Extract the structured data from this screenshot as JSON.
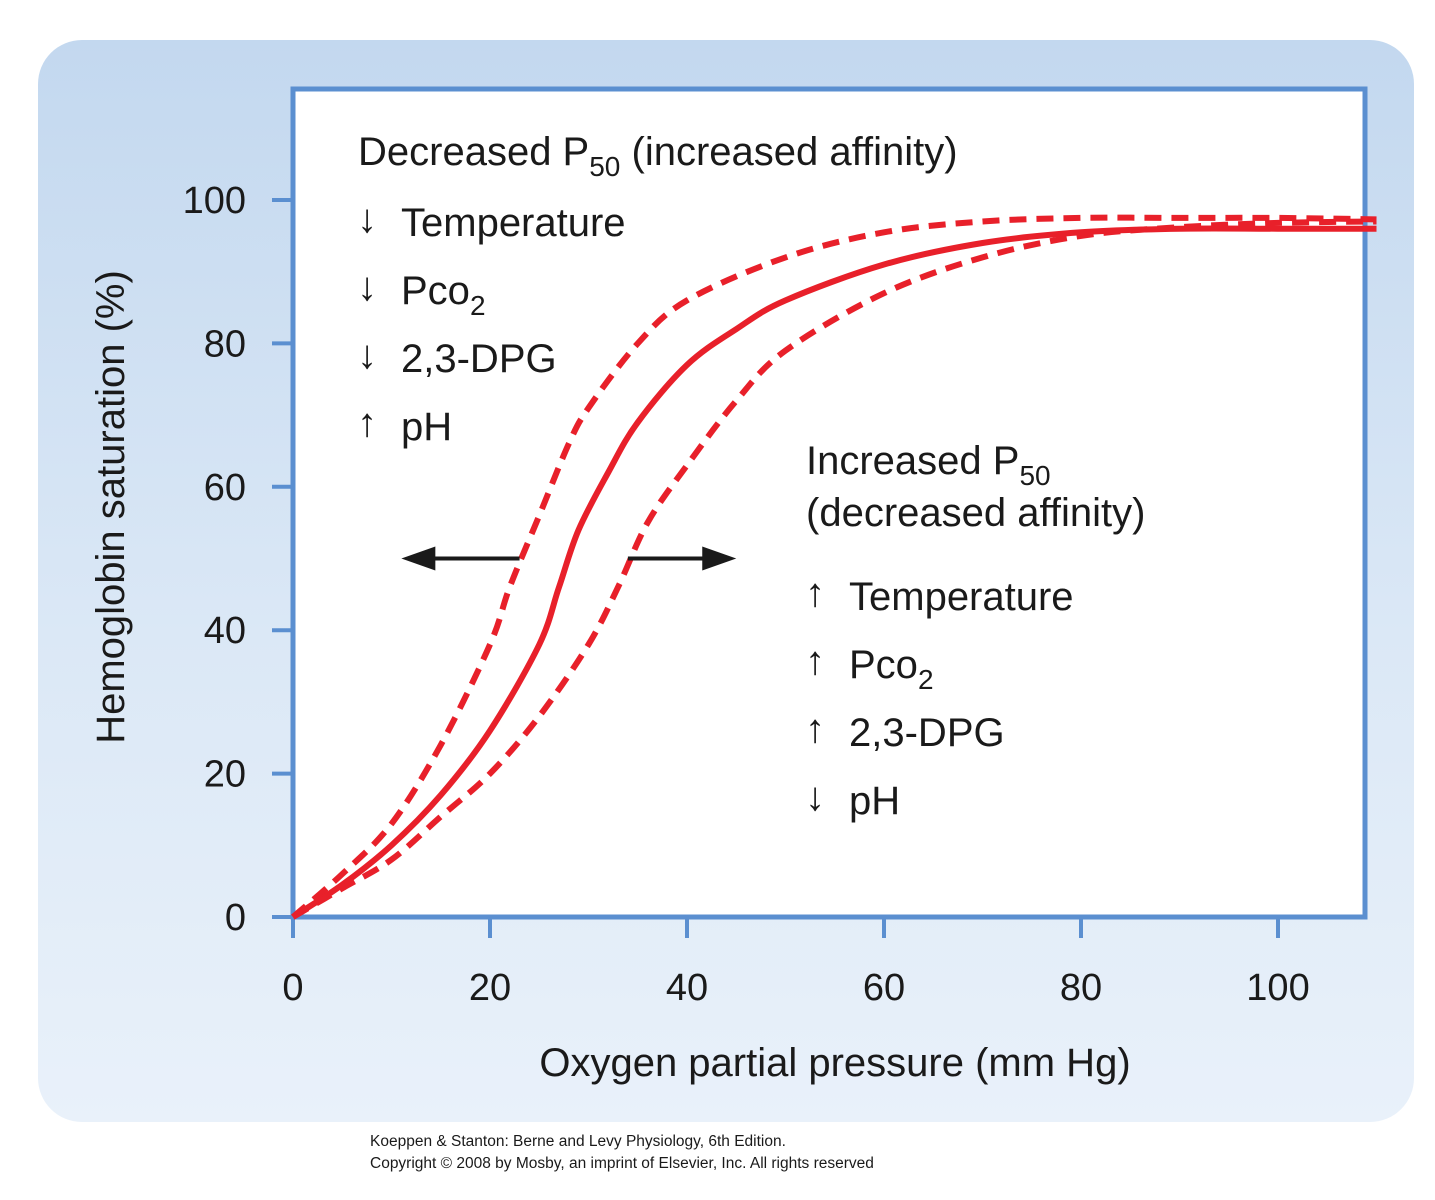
{
  "chart_data": {
    "type": "line",
    "xlabel": "Oxygen partial pressure (mm Hg)",
    "ylabel": "Hemoglobin saturation (%)",
    "xlim": [
      0,
      110
    ],
    "ylim": [
      0,
      100
    ],
    "xticks": [
      0,
      20,
      40,
      60,
      80,
      100
    ],
    "yticks": [
      0,
      20,
      40,
      60,
      80,
      100
    ],
    "x_tick_labels": [
      "0",
      "20",
      "40",
      "60",
      "80",
      "100"
    ],
    "y_tick_labels": [
      "0",
      "20",
      "40",
      "60",
      "80",
      "100"
    ],
    "grid": false,
    "series": [
      {
        "style": "dashed",
        "color": "#e8202a",
        "x": [
          0,
          5,
          10,
          15,
          20,
          22,
          25,
          28,
          30,
          35,
          40,
          50,
          60,
          70,
          80,
          90,
          100,
          110
        ],
        "y": [
          0,
          6,
          13,
          24,
          38,
          46,
          56,
          66,
          71,
          80,
          86,
          92,
          95.5,
          97,
          97.5,
          97.5,
          97.5,
          97.3
        ]
      },
      {
        "style": "solid",
        "color": "#e8202a",
        "x": [
          0,
          5,
          10,
          15,
          20,
          25,
          27,
          29,
          32,
          35,
          40,
          45,
          50,
          60,
          70,
          80,
          90,
          100,
          110
        ],
        "y": [
          0,
          4.5,
          10,
          17,
          26,
          38,
          46,
          54,
          62,
          69,
          77,
          82,
          86,
          91,
          94,
          95.5,
          96,
          96,
          96
        ]
      },
      {
        "style": "dashed",
        "color": "#e8202a",
        "x": [
          0,
          5,
          10,
          15,
          20,
          25,
          30,
          33,
          36,
          40,
          45,
          50,
          60,
          70,
          80,
          90,
          100,
          110
        ],
        "y": [
          0,
          4,
          8,
          14,
          20,
          28,
          38,
          46,
          55,
          63,
          72,
          79,
          87,
          92,
          95,
          96.2,
          96.8,
          97
        ]
      }
    ],
    "arrows": [
      {
        "direction": "left",
        "x_from": 23,
        "x_to": 11,
        "y": 50
      },
      {
        "direction": "right",
        "x_from": 34,
        "x_to": 45,
        "y": 50
      }
    ],
    "annotations": {
      "left": {
        "title": "Decreased P",
        "title_subscript": "50",
        "title_suffix": " (increased affinity)",
        "items": [
          {
            "arrow": "↓",
            "text": "Temperature"
          },
          {
            "arrow": "↓",
            "text": "Pco",
            "subscript": "2"
          },
          {
            "arrow": "↓",
            "text": "2,3-DPG"
          },
          {
            "arrow": "↑",
            "text": "pH"
          }
        ]
      },
      "right": {
        "title": "Increased P",
        "title_subscript": "50",
        "title_line2": "(decreased affinity)",
        "items": [
          {
            "arrow": "↑",
            "text": "Temperature"
          },
          {
            "arrow": "↑",
            "text": "Pco",
            "subscript": "2"
          },
          {
            "arrow": "↑",
            "text": "2,3-DPG"
          },
          {
            "arrow": "↓",
            "text": "pH"
          }
        ]
      }
    },
    "colors": {
      "curve": "#e8202a",
      "frame": "#5b8fd0",
      "arrow": "#1a1a1a",
      "text": "#1a1a1a",
      "panel": "#c9dcf0"
    }
  },
  "credit": {
    "line1": "Koeppen & Stanton: Berne and Levy Physiology, 6th Edition.",
    "line2": "Copyright © 2008 by Mosby, an imprint of Elsevier, Inc. All rights reserved"
  }
}
